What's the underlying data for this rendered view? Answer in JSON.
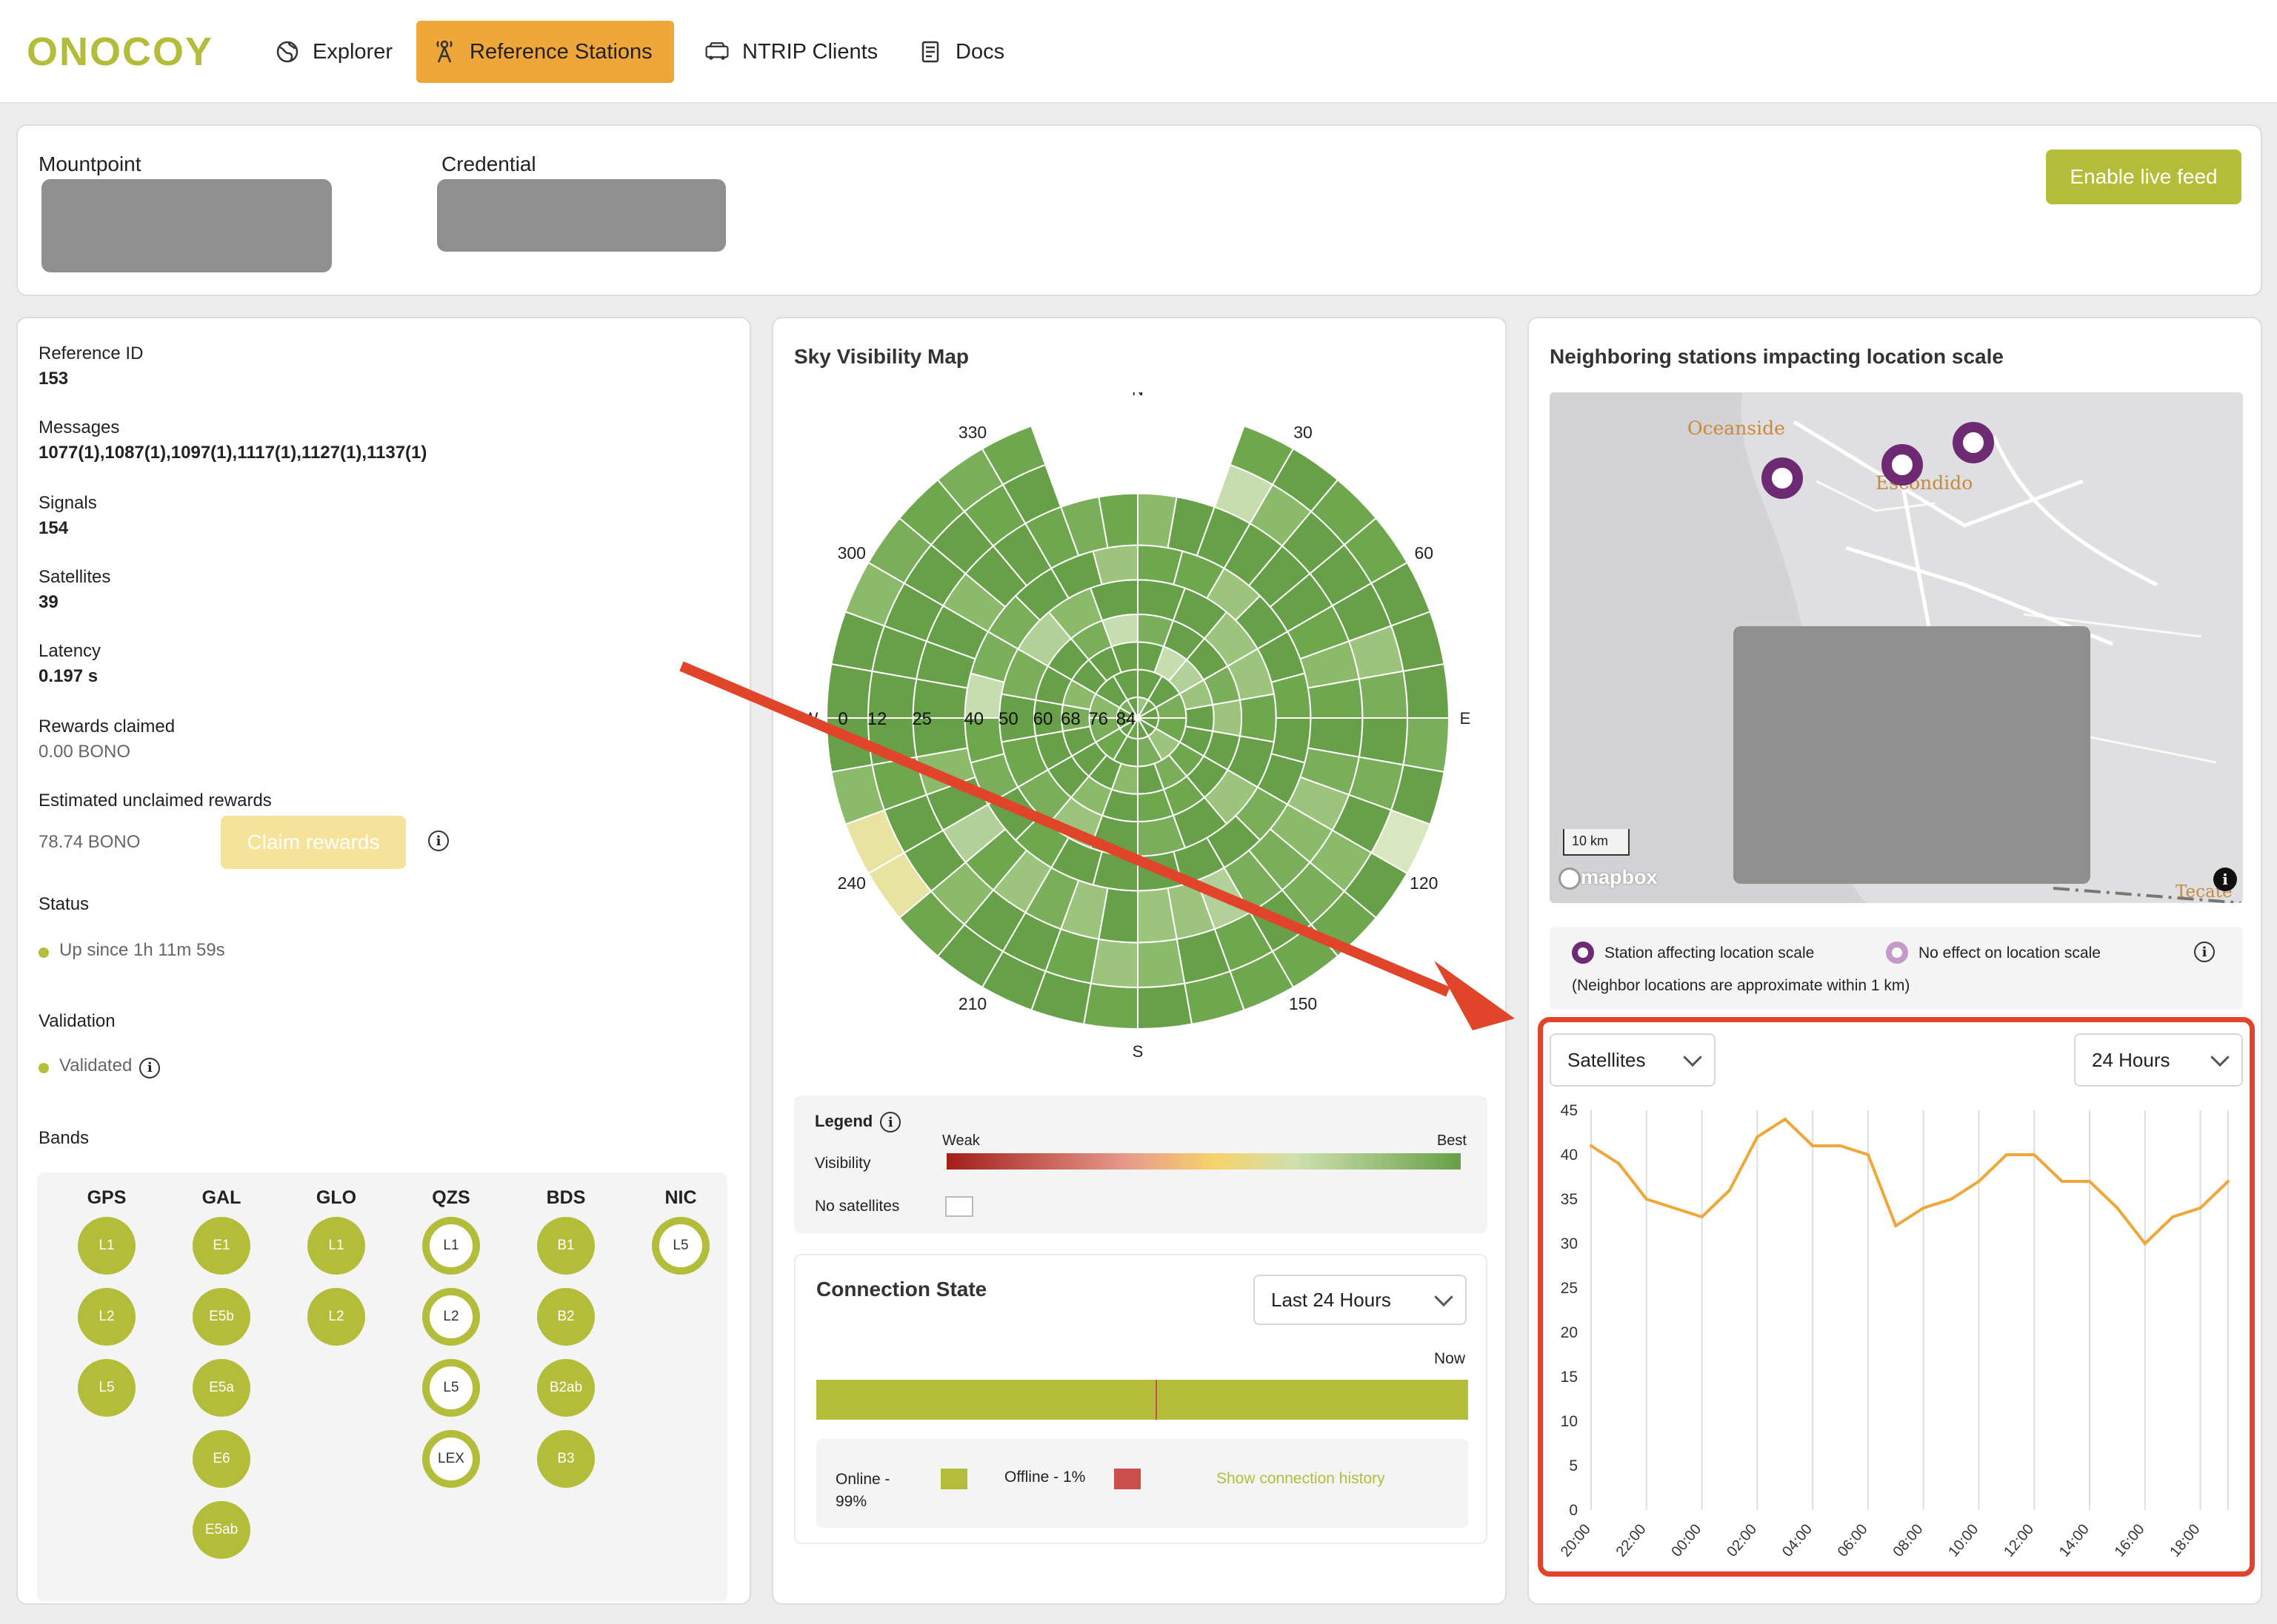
{
  "brand": {
    "name": "ONOCOY",
    "color": "#b3bd3a"
  },
  "nav": {
    "items": [
      {
        "label": "Explorer",
        "icon": "globe-icon"
      },
      {
        "label": "Reference Stations",
        "icon": "antenna-icon",
        "active": true
      },
      {
        "label": "NTRIP Clients",
        "icon": "car-icon"
      },
      {
        "label": "Docs",
        "icon": "document-icon"
      }
    ]
  },
  "header": {
    "mountpoint_label": "Mountpoint",
    "credential_label": "Credential",
    "live_feed_button": "Enable live feed"
  },
  "station": {
    "reference_id_label": "Reference ID",
    "reference_id": "153",
    "messages_label": "Messages",
    "messages": "1077(1),1087(1),1097(1),1117(1),1127(1),1137(1)",
    "signals_label": "Signals",
    "signals": "154",
    "satellites_label": "Satellites",
    "satellites": "39",
    "latency_label": "Latency",
    "latency": "0.197 s",
    "rewards_claimed_label": "Rewards claimed",
    "rewards_claimed": "0.00 BONO",
    "unclaimed_label": "Estimated unclaimed rewards",
    "unclaimed": "78.74 BONO",
    "claim_button": "Claim rewards",
    "status_label": "Status",
    "status": "Up since 1h 11m 59s",
    "validation_label": "Validation",
    "validation": "Validated",
    "bands_label": "Bands",
    "status_color": "#b3bd3a"
  },
  "bands": [
    {
      "name": "GPS",
      "chips": [
        {
          "label": "L1",
          "ring": false
        },
        {
          "label": "L2",
          "ring": false
        },
        {
          "label": "L5",
          "ring": false
        }
      ]
    },
    {
      "name": "GAL",
      "chips": [
        {
          "label": "E1",
          "ring": false
        },
        {
          "label": "E5b",
          "ring": false
        },
        {
          "label": "E5a",
          "ring": false
        },
        {
          "label": "E6",
          "ring": false
        },
        {
          "label": "E5ab",
          "ring": false
        }
      ]
    },
    {
      "name": "GLO",
      "chips": [
        {
          "label": "L1",
          "ring": false
        },
        {
          "label": "L2",
          "ring": false
        }
      ]
    },
    {
      "name": "QZS",
      "chips": [
        {
          "label": "L1",
          "ring": true
        },
        {
          "label": "L2",
          "ring": true
        },
        {
          "label": "L5",
          "ring": true
        },
        {
          "label": "LEX",
          "ring": true
        }
      ]
    },
    {
      "name": "BDS",
      "chips": [
        {
          "label": "B1",
          "ring": false
        },
        {
          "label": "B2",
          "ring": false
        },
        {
          "label": "B2ab",
          "ring": false
        },
        {
          "label": "B3",
          "ring": false
        }
      ]
    },
    {
      "name": "NIC",
      "chips": [
        {
          "label": "L5",
          "ring": true
        }
      ]
    }
  ],
  "sky": {
    "title": "Sky Visibility Map",
    "compass": {
      "n": "N",
      "e": "E",
      "s": "S",
      "w": "W"
    },
    "azimuth_labels": [
      "30",
      "60",
      "120",
      "150",
      "210",
      "240",
      "300",
      "330"
    ],
    "elevation_labels": [
      "0",
      "12",
      "25",
      "40",
      "50",
      "60",
      "68",
      "76",
      "84"
    ],
    "legend_title": "Legend",
    "legend_weak": "Weak",
    "legend_best": "Best",
    "legend_visibility": "Visibility",
    "legend_no_sat": "No satellites",
    "colors": {
      "weak": "#a31f1a",
      "mid": "#f7d26b",
      "best": "#67a048"
    }
  },
  "connection": {
    "title": "Connection State",
    "range": "Last 24 Hours",
    "now_label": "Now",
    "online_label": "Online - 99%",
    "offline_label": "Offline - 1%",
    "history_link": "Show connection history",
    "online_fraction": 0.99,
    "online_color": "#b3bd3a",
    "offline_color": "#c9504a"
  },
  "neighbors": {
    "title": "Neighboring stations impacting location scale",
    "places": [
      "Oceanside",
      "Escondido",
      "Tecate"
    ],
    "scale_label": "10 km",
    "map_attribution": "mapbox",
    "legend_affecting": "Station affecting location scale",
    "legend_no_effect": "No effect on location scale",
    "note": "(Neighbor locations are approximate within 1 km)",
    "marker_color": "#6e2a73"
  },
  "chart_controls": {
    "metric": "Satellites",
    "range": "24 Hours"
  },
  "chart_data": {
    "type": "line",
    "title": "",
    "xlabel": "",
    "ylabel": "",
    "x": [
      "20:00",
      "21:00",
      "22:00",
      "23:00",
      "00:00",
      "01:00",
      "02:00",
      "03:00",
      "04:00",
      "05:00",
      "06:00",
      "07:00",
      "08:00",
      "09:00",
      "10:00",
      "11:00",
      "12:00",
      "13:00",
      "14:00",
      "15:00",
      "16:00",
      "17:00",
      "18:00",
      "19:00"
    ],
    "x_ticks": [
      "20:00",
      "22:00",
      "00:00",
      "02:00",
      "04:00",
      "06:00",
      "08:00",
      "10:00",
      "12:00",
      "14:00",
      "16:00",
      "18:00"
    ],
    "series": [
      {
        "values": [
          41,
          39,
          35,
          34,
          33,
          36,
          42,
          44,
          41,
          41,
          40,
          32,
          34,
          35,
          37,
          40,
          40,
          37,
          37,
          34,
          30,
          33,
          34,
          37
        ]
      }
    ],
    "ylim": [
      0,
      45
    ],
    "y_ticks": [
      0,
      5,
      10,
      15,
      20,
      25,
      30,
      35,
      40,
      45
    ],
    "grid": "vertical",
    "line_color": "#efa73a",
    "highlight_color": "#e0452a"
  }
}
